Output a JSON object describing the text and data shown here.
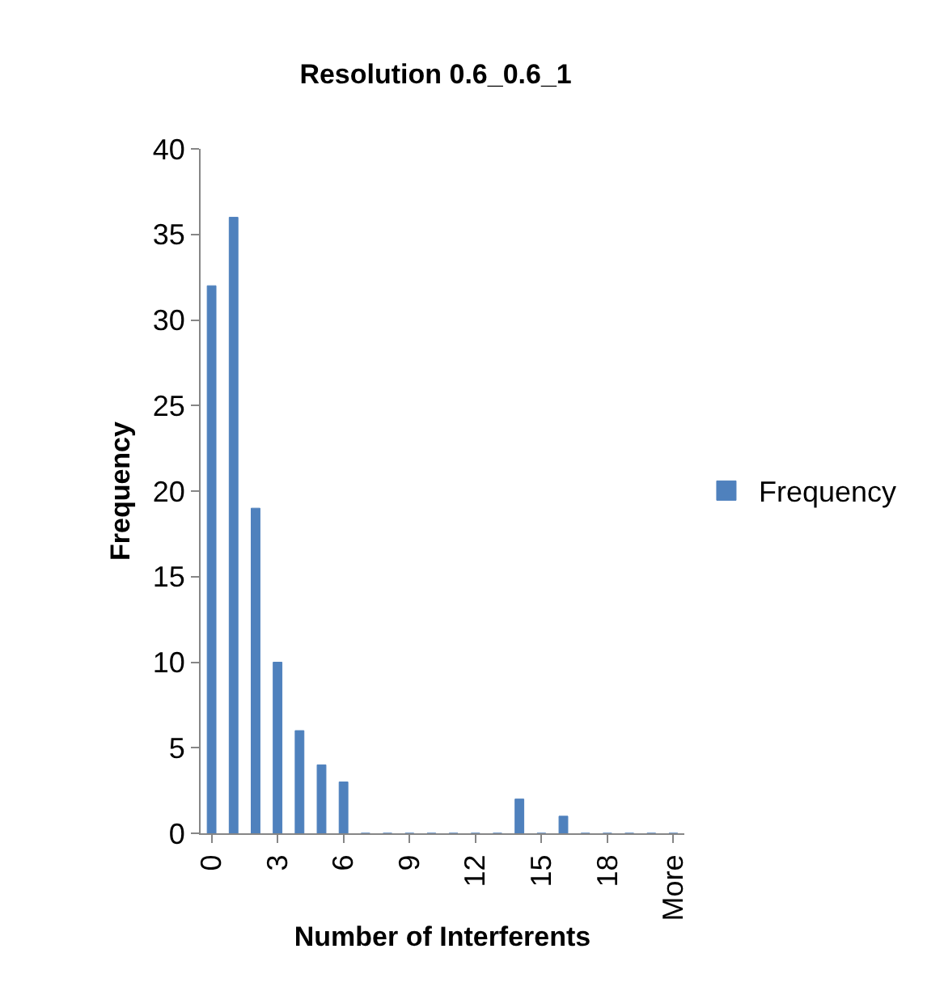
{
  "chart_data": {
    "type": "bar",
    "title": "Resolution 0.6_0.6_1",
    "xlabel": "Number of Interferents",
    "ylabel": "Frequency",
    "categories": [
      "0",
      null,
      null,
      "3",
      null,
      null,
      "6",
      null,
      null,
      "9",
      null,
      null,
      "12",
      null,
      null,
      "15",
      null,
      null,
      "18",
      null,
      null,
      "More"
    ],
    "series": [
      {
        "name": "Frequency",
        "color": "#4f81bd",
        "values": [
          32,
          36,
          19,
          10,
          6,
          4,
          3,
          0,
          0,
          0,
          0,
          0,
          0,
          0,
          2,
          0,
          1,
          0,
          0,
          0,
          0,
          0
        ]
      }
    ],
    "ylim": [
      0,
      40
    ],
    "yticks": [
      0,
      5,
      10,
      15,
      20,
      25,
      30,
      35,
      40
    ],
    "legend": "right"
  }
}
